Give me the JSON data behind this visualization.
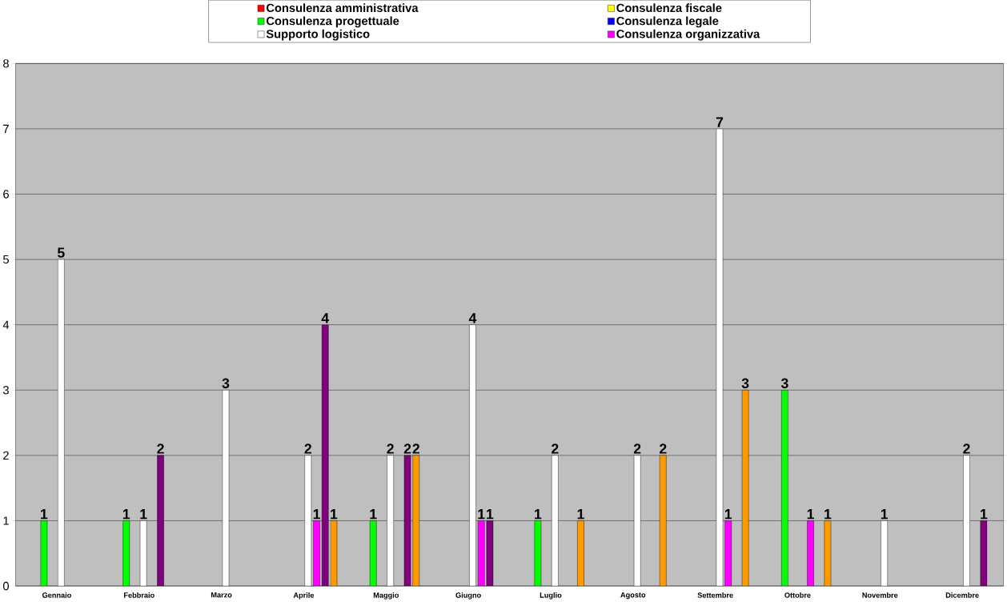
{
  "chart_data": {
    "type": "bar",
    "categories": [
      "Gennaio",
      "Febbraio",
      "Marzo",
      "Aprile",
      "Maggio",
      "Giugno",
      "Luglio",
      "Agosto",
      "Settembre",
      "Ottobre",
      "Novembre",
      "Dicembre"
    ],
    "series": [
      {
        "name": "Consulenza amministrativa",
        "color": "#ff0000",
        "values": [
          null,
          null,
          null,
          null,
          null,
          null,
          null,
          null,
          null,
          null,
          null,
          null
        ]
      },
      {
        "name": "Consulenza fiscale",
        "color": "#ffff00",
        "values": [
          null,
          null,
          null,
          null,
          null,
          null,
          null,
          null,
          null,
          null,
          null,
          null
        ]
      },
      {
        "name": "Consulenza progettuale",
        "color": "#00ff00",
        "values": [
          1,
          1,
          null,
          null,
          1,
          null,
          1,
          null,
          null,
          3,
          null,
          null
        ]
      },
      {
        "name": "Consulenza legale",
        "color": "#0000ff",
        "values": [
          null,
          null,
          null,
          null,
          null,
          null,
          null,
          null,
          null,
          null,
          null,
          null
        ]
      },
      {
        "name": "Supporto logistico",
        "color": "#ffffff",
        "values": [
          5,
          1,
          3,
          2,
          2,
          4,
          2,
          2,
          7,
          null,
          1,
          2
        ]
      },
      {
        "name": "Consulenza organizzativa",
        "color": "#ff00ff",
        "values": [
          null,
          null,
          null,
          1,
          null,
          1,
          null,
          null,
          1,
          1,
          null,
          null
        ]
      },
      {
        "color": "#800080",
        "values": [
          null,
          2,
          null,
          4,
          2,
          1,
          null,
          null,
          null,
          null,
          null,
          1
        ]
      },
      {
        "color": "#ff9900",
        "values": [
          null,
          null,
          null,
          1,
          2,
          null,
          1,
          2,
          3,
          1,
          null,
          null
        ]
      }
    ],
    "ylim": [
      0,
      8
    ],
    "yticks": [
      0,
      1,
      2,
      3,
      4,
      5,
      6,
      7,
      8
    ],
    "grid": "y",
    "legend": "top",
    "data_labels": true
  }
}
